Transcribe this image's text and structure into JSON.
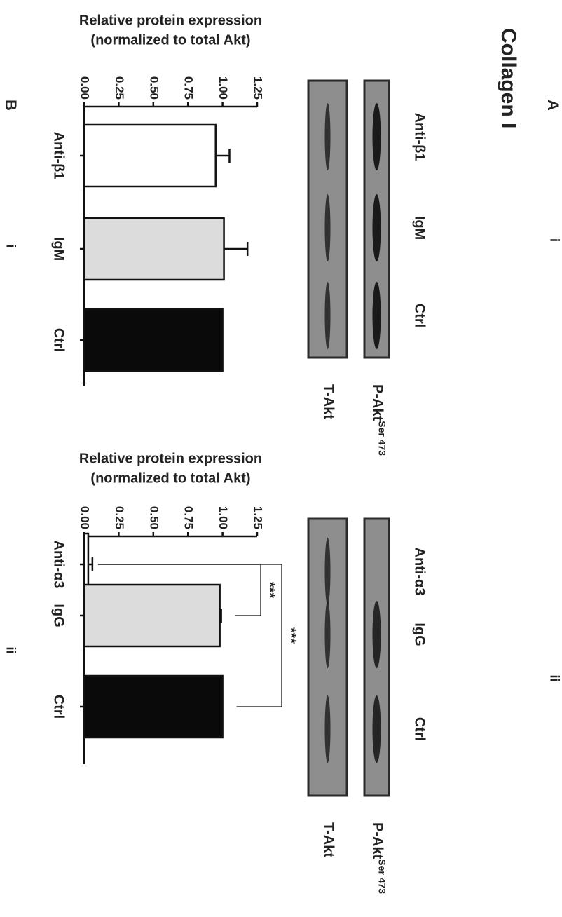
{
  "figure": {
    "panel_a": "A",
    "panel_b": "B",
    "title": "Collagen I"
  },
  "blots": [
    {
      "sublabel": "i",
      "lanes": [
        "Anti-β1",
        "IgM",
        "Ctrl"
      ],
      "rows": [
        {
          "name": "P-Akt",
          "superscript": "Ser 473"
        },
        {
          "name": "T-Akt"
        }
      ]
    },
    {
      "sublabel": "ii",
      "lanes": [
        "Anti-α3",
        "IgG",
        "Ctrl"
      ],
      "rows": [
        {
          "name": "P-Akt",
          "superscript": "Ser 473"
        },
        {
          "name": "T-Akt"
        }
      ]
    }
  ],
  "chart_data": [
    {
      "type": "bar",
      "sublabel": "i",
      "ylabel": [
        "Relative protein expression",
        "(normalized to total Akt)"
      ],
      "categories": [
        "Anti-β1",
        "IgM",
        "Ctrl"
      ],
      "values": [
        0.95,
        1.01,
        1.0
      ],
      "errors": [
        0.1,
        0.17,
        0
      ],
      "colors": [
        "#ffffff",
        "#dcdcdc",
        "#0a0a0a"
      ],
      "ylim": [
        0,
        1.25
      ],
      "yticks": [
        {
          "value": 0,
          "label": "0.00"
        },
        {
          "value": 0.25,
          "label": "0.25"
        },
        {
          "value": 0.5,
          "label": "0.50"
        },
        {
          "value": 0.75,
          "label": "0.75"
        },
        {
          "value": 1,
          "label": "1.00"
        },
        {
          "value": 1.25,
          "label": "1.25"
        }
      ],
      "annotations": []
    },
    {
      "type": "bar",
      "sublabel": "ii",
      "ylabel": [
        "Relative protein expression",
        "(normalized to total Akt)"
      ],
      "categories": [
        "Anti-α3",
        "IgG",
        "Ctrl"
      ],
      "values": [
        0.03,
        0.98,
        1.0
      ],
      "errors": [
        0.03,
        0.01,
        0
      ],
      "colors": [
        "#ffffff",
        "#dcdcdc",
        "#0a0a0a"
      ],
      "ylim": [
        0,
        1.25
      ],
      "yticks": [
        {
          "value": 0,
          "label": "0.00"
        },
        {
          "value": 0.25,
          "label": "0.25"
        },
        {
          "value": 0.5,
          "label": "0.50"
        },
        {
          "value": 0.75,
          "label": "0.75"
        },
        {
          "value": 1,
          "label": "1.00"
        },
        {
          "value": 1.25,
          "label": "1.25"
        }
      ],
      "annotations": [
        {
          "text": "***",
          "between": [
            "Anti-α3",
            "IgG"
          ]
        },
        {
          "text": "***",
          "between": [
            "Anti-α3",
            "Ctrl"
          ]
        }
      ]
    }
  ]
}
